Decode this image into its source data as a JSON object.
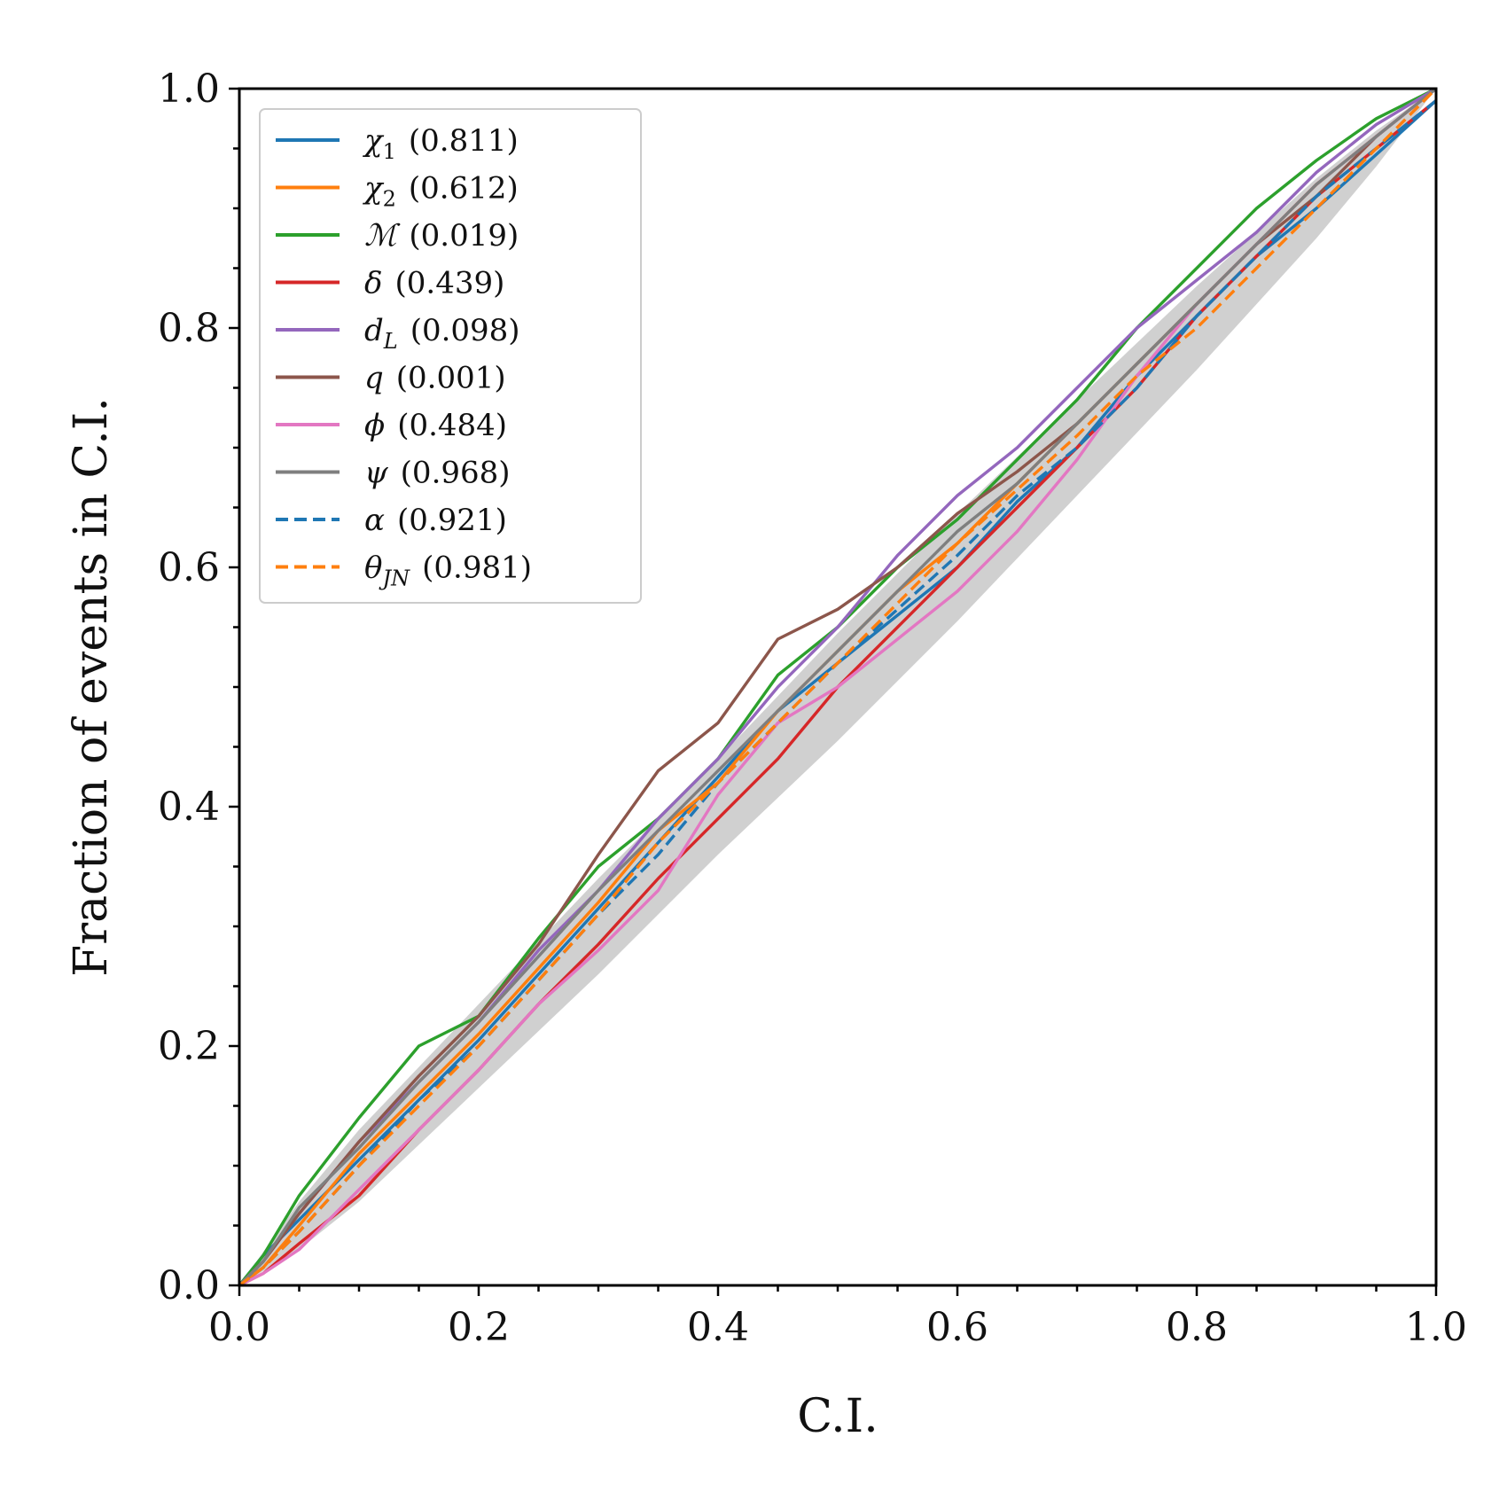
{
  "chart_data": {
    "type": "line",
    "title": "",
    "xlabel": "C.I.",
    "ylabel": "Fraction of events in C.I.",
    "xlim": [
      0.0,
      1.0
    ],
    "ylim": [
      0.0,
      1.0
    ],
    "x_ticks": [
      "0.0",
      "0.2",
      "0.4",
      "0.6",
      "0.8",
      "1.0"
    ],
    "y_ticks": [
      "0.0",
      "0.2",
      "0.4",
      "0.6",
      "0.8",
      "1.0"
    ],
    "grid": false,
    "legend_position": "top-left",
    "confidence_band": {
      "color": "#b0b0b0",
      "x": [
        0,
        0.05,
        0.1,
        0.2,
        0.3,
        0.4,
        0.5,
        0.6,
        0.7,
        0.8,
        0.9,
        0.95,
        1.0
      ],
      "lower": [
        0,
        0.03,
        0.07,
        0.165,
        0.26,
        0.36,
        0.455,
        0.555,
        0.66,
        0.765,
        0.875,
        0.935,
        1.0
      ],
      "upper": [
        0,
        0.07,
        0.13,
        0.235,
        0.34,
        0.44,
        0.545,
        0.645,
        0.74,
        0.835,
        0.925,
        0.965,
        1.0
      ]
    },
    "series": [
      {
        "name": "χ",
        "sub": "1",
        "pvalue": "(0.811)",
        "color": "#1f77b4",
        "dash": false,
        "x": [
          0,
          0.02,
          0.05,
          0.1,
          0.15,
          0.2,
          0.25,
          0.3,
          0.35,
          0.4,
          0.45,
          0.5,
          0.55,
          0.6,
          0.65,
          0.7,
          0.75,
          0.8,
          0.85,
          0.9,
          0.95,
          1.0
        ],
        "y": [
          0,
          0.025,
          0.055,
          0.105,
          0.155,
          0.205,
          0.26,
          0.315,
          0.37,
          0.425,
          0.48,
          0.52,
          0.56,
          0.6,
          0.655,
          0.7,
          0.76,
          0.81,
          0.86,
          0.9,
          0.945,
          0.99
        ]
      },
      {
        "name": "χ",
        "sub": "2",
        "pvalue": "(0.612)",
        "color": "#ff7f0e",
        "dash": false,
        "x": [
          0,
          0.02,
          0.05,
          0.1,
          0.15,
          0.2,
          0.25,
          0.3,
          0.35,
          0.4,
          0.45,
          0.5,
          0.55,
          0.6,
          0.65,
          0.7,
          0.75,
          0.8,
          0.85,
          0.9,
          0.95,
          1.0
        ],
        "y": [
          0,
          0.015,
          0.05,
          0.11,
          0.16,
          0.21,
          0.265,
          0.32,
          0.38,
          0.42,
          0.48,
          0.53,
          0.58,
          0.62,
          0.67,
          0.72,
          0.77,
          0.82,
          0.87,
          0.92,
          0.96,
          1.0
        ]
      },
      {
        "name": "ℳ",
        "sub": "",
        "pvalue": "(0.019)",
        "color": "#2ca02c",
        "dash": false,
        "x": [
          0,
          0.02,
          0.05,
          0.1,
          0.15,
          0.2,
          0.25,
          0.3,
          0.35,
          0.4,
          0.45,
          0.5,
          0.55,
          0.6,
          0.65,
          0.7,
          0.75,
          0.8,
          0.85,
          0.9,
          0.95,
          1.0
        ],
        "y": [
          0,
          0.025,
          0.075,
          0.14,
          0.2,
          0.225,
          0.29,
          0.35,
          0.39,
          0.44,
          0.51,
          0.55,
          0.6,
          0.64,
          0.69,
          0.74,
          0.8,
          0.85,
          0.9,
          0.94,
          0.975,
          1.0
        ]
      },
      {
        "name": "δ",
        "sub": "",
        "pvalue": "(0.439)",
        "color": "#d62728",
        "dash": false,
        "x": [
          0,
          0.02,
          0.05,
          0.1,
          0.15,
          0.2,
          0.25,
          0.3,
          0.35,
          0.4,
          0.45,
          0.5,
          0.55,
          0.6,
          0.65,
          0.7,
          0.75,
          0.8,
          0.85,
          0.9,
          0.95,
          1.0
        ],
        "y": [
          0,
          0.01,
          0.035,
          0.075,
          0.13,
          0.18,
          0.235,
          0.285,
          0.34,
          0.39,
          0.44,
          0.5,
          0.55,
          0.6,
          0.65,
          0.7,
          0.75,
          0.81,
          0.86,
          0.91,
          0.95,
          0.99
        ]
      },
      {
        "name": "d",
        "sub": "L",
        "pvalue": "(0.098)",
        "color": "#9467bd",
        "dash": false,
        "x": [
          0,
          0.02,
          0.05,
          0.1,
          0.15,
          0.2,
          0.25,
          0.3,
          0.35,
          0.4,
          0.45,
          0.5,
          0.55,
          0.6,
          0.65,
          0.7,
          0.75,
          0.8,
          0.85,
          0.9,
          0.95,
          1.0
        ],
        "y": [
          0,
          0.02,
          0.06,
          0.12,
          0.17,
          0.22,
          0.28,
          0.33,
          0.39,
          0.44,
          0.5,
          0.55,
          0.61,
          0.66,
          0.7,
          0.75,
          0.8,
          0.84,
          0.88,
          0.93,
          0.97,
          1.0
        ]
      },
      {
        "name": "q",
        "sub": "",
        "pvalue": "(0.001)",
        "color": "#8c564b",
        "dash": false,
        "x": [
          0,
          0.02,
          0.05,
          0.1,
          0.15,
          0.2,
          0.25,
          0.3,
          0.35,
          0.4,
          0.45,
          0.5,
          0.55,
          0.6,
          0.65,
          0.7,
          0.75,
          0.8,
          0.85,
          0.9,
          0.95,
          1.0
        ],
        "y": [
          0,
          0.02,
          0.06,
          0.12,
          0.175,
          0.225,
          0.285,
          0.36,
          0.43,
          0.47,
          0.54,
          0.565,
          0.6,
          0.645,
          0.68,
          0.72,
          0.77,
          0.82,
          0.87,
          0.91,
          0.96,
          1.0
        ]
      },
      {
        "name": "ϕ",
        "sub": "",
        "pvalue": "(0.484)",
        "color": "#e377c2",
        "dash": false,
        "x": [
          0,
          0.02,
          0.05,
          0.1,
          0.15,
          0.2,
          0.25,
          0.3,
          0.35,
          0.4,
          0.45,
          0.5,
          0.55,
          0.6,
          0.65,
          0.7,
          0.75,
          0.8,
          0.85,
          0.9,
          0.95,
          1.0
        ],
        "y": [
          0,
          0.01,
          0.03,
          0.08,
          0.13,
          0.18,
          0.235,
          0.28,
          0.33,
          0.41,
          0.47,
          0.5,
          0.54,
          0.58,
          0.63,
          0.69,
          0.76,
          0.82,
          0.87,
          0.92,
          0.96,
          1.0
        ]
      },
      {
        "name": "ψ",
        "sub": "",
        "pvalue": "(0.968)",
        "color": "#7f7f7f",
        "dash": false,
        "x": [
          0,
          0.02,
          0.05,
          0.1,
          0.15,
          0.2,
          0.25,
          0.3,
          0.35,
          0.4,
          0.45,
          0.5,
          0.55,
          0.6,
          0.65,
          0.7,
          0.75,
          0.8,
          0.85,
          0.9,
          0.95,
          1.0
        ],
        "y": [
          0,
          0.02,
          0.065,
          0.115,
          0.17,
          0.22,
          0.275,
          0.33,
          0.38,
          0.43,
          0.48,
          0.53,
          0.58,
          0.63,
          0.67,
          0.72,
          0.77,
          0.82,
          0.87,
          0.92,
          0.96,
          1.0
        ]
      },
      {
        "name": "α",
        "sub": "",
        "pvalue": "(0.921)",
        "color": "#1f77b4",
        "dash": true,
        "x": [
          0,
          0.02,
          0.05,
          0.1,
          0.15,
          0.2,
          0.25,
          0.3,
          0.35,
          0.4,
          0.45,
          0.5,
          0.55,
          0.6,
          0.65,
          0.7,
          0.75,
          0.8,
          0.85,
          0.9,
          0.95,
          1.0
        ],
        "y": [
          0,
          0.015,
          0.045,
          0.1,
          0.155,
          0.2,
          0.255,
          0.31,
          0.36,
          0.42,
          0.47,
          0.52,
          0.565,
          0.61,
          0.66,
          0.7,
          0.75,
          0.81,
          0.86,
          0.91,
          0.95,
          0.99
        ]
      },
      {
        "name": "θ",
        "sub": "JN",
        "pvalue": "(0.981)",
        "color": "#ff7f0e",
        "dash": true,
        "x": [
          0,
          0.02,
          0.05,
          0.1,
          0.15,
          0.2,
          0.25,
          0.3,
          0.35,
          0.4,
          0.45,
          0.5,
          0.55,
          0.6,
          0.65,
          0.7,
          0.75,
          0.8,
          0.85,
          0.9,
          0.95,
          1.0
        ],
        "y": [
          0,
          0.015,
          0.045,
          0.1,
          0.15,
          0.2,
          0.255,
          0.31,
          0.37,
          0.42,
          0.47,
          0.52,
          0.57,
          0.62,
          0.665,
          0.71,
          0.76,
          0.8,
          0.85,
          0.9,
          0.95,
          1.0
        ]
      }
    ]
  }
}
